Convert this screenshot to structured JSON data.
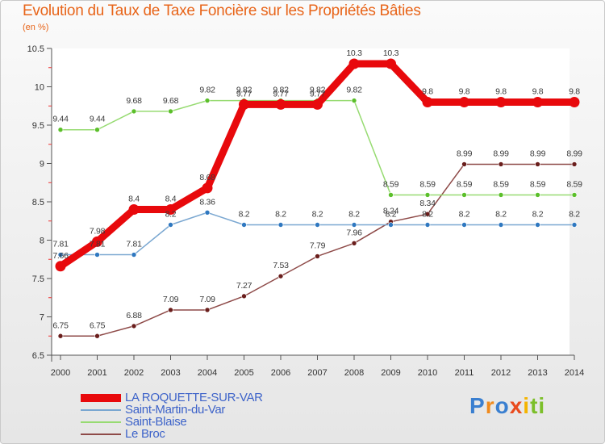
{
  "header": {
    "title": "Evolution du Taux de Taxe Foncière sur les Propriétés Bâties",
    "unit": "(en %)"
  },
  "logo": {
    "letters": [
      "P",
      "r",
      "o",
      "x",
      "i",
      "t",
      "i"
    ],
    "colors": [
      "#3a7fd0",
      "#f08a1c",
      "#3a7fd0",
      "#e94b1e",
      "#f4b400",
      "#7cbf2a",
      "#7cbf2a"
    ]
  },
  "chart_data": {
    "type": "line",
    "title": "Evolution du Taux de Taxe Foncière sur les Propriétés Bâties",
    "ylabel": "(en %)",
    "xlabel": "",
    "x": [
      "2000",
      "2001",
      "2002",
      "2003",
      "2004",
      "2005",
      "2006",
      "2007",
      "2008",
      "2009",
      "2010",
      "2011",
      "2012",
      "2013",
      "2014"
    ],
    "ylim": [
      6.5,
      10.5
    ],
    "yticks": [
      "6.5",
      "7",
      "7.5",
      "8",
      "8.5",
      "9",
      "9.5",
      "10",
      "10.5"
    ],
    "grid": false,
    "legend_position": "bottom-left",
    "series": [
      {
        "name": "LA ROQUETTE-SUR-VAR",
        "color": "#e8090c",
        "marker": "#e8090c",
        "width": 9,
        "values": [
          7.66,
          7.98,
          8.4,
          8.4,
          8.68,
          9.77,
          9.77,
          9.77,
          10.3,
          10.3,
          9.8,
          9.8,
          9.8,
          9.8,
          9.8
        ],
        "labels": [
          "7.66",
          "7.98",
          "8.4",
          "8.4",
          "8.68",
          "9.77",
          "9.77",
          "9.77",
          "10.3",
          "10.3",
          "9.8",
          "9.8",
          "9.8",
          "9.8",
          "9.8"
        ]
      },
      {
        "name": "Saint-Martin-du-Var",
        "color": "#7aa7d1",
        "marker": "#2f78c0",
        "width": 1.5,
        "values": [
          7.81,
          7.81,
          7.81,
          8.2,
          8.36,
          8.2,
          8.2,
          8.2,
          8.2,
          8.2,
          8.2,
          8.2,
          8.2,
          8.2,
          8.2
        ],
        "labels": [
          "7.81",
          "7.81",
          "7.81",
          "8.2",
          "8.36",
          "8.2",
          "8.2",
          "8.2",
          "8.2",
          "8.2",
          "8.2",
          "8.2",
          "8.2",
          "8.2",
          "8.2"
        ]
      },
      {
        "name": "Saint-Blaise",
        "color": "#97db72",
        "marker": "#5bbf2a",
        "width": 1.5,
        "values": [
          9.44,
          9.44,
          9.68,
          9.68,
          9.82,
          9.82,
          9.82,
          9.82,
          9.82,
          8.59,
          8.59,
          8.59,
          8.59,
          8.59,
          8.59
        ],
        "labels": [
          "9.44",
          "9.44",
          "9.68",
          "9.68",
          "9.82",
          "9.82",
          "9.82",
          "9.82",
          "9.82",
          "8.59",
          "8.59",
          "8.59",
          "8.59",
          "8.59",
          "8.59"
        ]
      },
      {
        "name": "Le Broc",
        "color": "#8e4a48",
        "marker": "#6a1e1c",
        "width": 1.5,
        "values": [
          6.75,
          6.75,
          6.88,
          7.09,
          7.09,
          7.27,
          7.53,
          7.79,
          7.96,
          8.24,
          8.34,
          8.99,
          8.99,
          8.99,
          8.99
        ],
        "labels": [
          "6.75",
          "6.75",
          "6.88",
          "7.09",
          "7.09",
          "7.27",
          "7.53",
          "7.79",
          "7.96",
          "8.24",
          "8.34",
          "8.99",
          "8.99",
          "8.99",
          "8.99"
        ]
      }
    ]
  }
}
